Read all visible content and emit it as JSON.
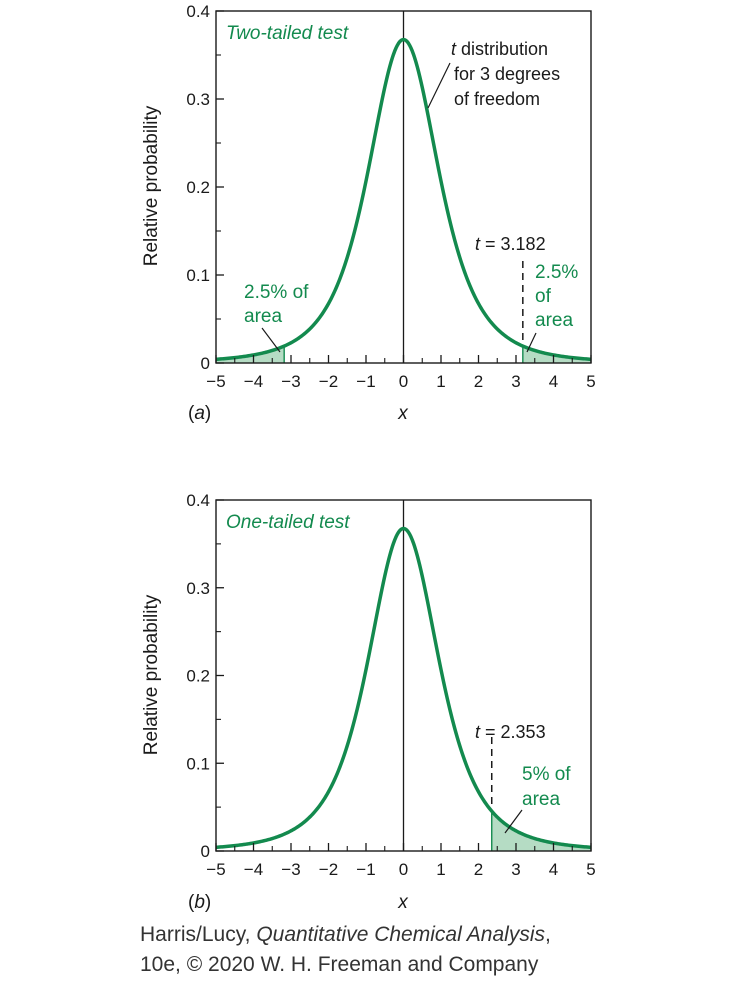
{
  "colors": {
    "curve": "#138a4e",
    "fill": "#b5dcc4",
    "axis": "#1a1a1a",
    "annotation_green": "#138a4e"
  },
  "chart_data": [
    {
      "type": "area",
      "panel_label": "(a)",
      "title": "Two-tailed test",
      "xlabel": "x",
      "ylabel": "Relative probability",
      "xlim": [
        -5,
        5
      ],
      "ylim": [
        0,
        0.4
      ],
      "xticks": [
        "−5",
        "−4",
        "−3",
        "−2",
        "−1",
        "0",
        "1",
        "2",
        "3",
        "4",
        "5"
      ],
      "yticks": [
        "0",
        "0.1",
        "0.2",
        "0.3",
        "0.4"
      ],
      "degrees_of_freedom": 3,
      "peak_value": 0.3676,
      "series": [
        {
          "name": "t distribution for 3 degrees of freedom",
          "function": "student_t",
          "df": 3
        }
      ],
      "shaded_regions": [
        [
          -5,
          -3.182
        ],
        [
          3.182,
          5
        ]
      ],
      "critical_line_x": 3.182,
      "annotations": {
        "curve_label": [
          "t distribution",
          "for 3 degrees",
          "of freedom"
        ],
        "critical_label": "t = 3.182",
        "left_area": [
          "2.5% of",
          "area"
        ],
        "right_area": [
          "2.5%",
          "of",
          "area"
        ]
      }
    },
    {
      "type": "area",
      "panel_label": "(b)",
      "title": "One-tailed test",
      "xlabel": "x",
      "ylabel": "Relative probability",
      "xlim": [
        -5,
        5
      ],
      "ylim": [
        0,
        0.4
      ],
      "xticks": [
        "−5",
        "−4",
        "−3",
        "−2",
        "−1",
        "0",
        "1",
        "2",
        "3",
        "4",
        "5"
      ],
      "yticks": [
        "0",
        "0.1",
        "0.2",
        "0.3",
        "0.4"
      ],
      "degrees_of_freedom": 3,
      "peak_value": 0.3676,
      "series": [
        {
          "function": "student_t",
          "df": 3
        }
      ],
      "shaded_regions": [
        [
          2.353,
          5
        ]
      ],
      "critical_line_x": 2.353,
      "annotations": {
        "critical_label": "t = 2.353",
        "right_area": [
          "5% of",
          "area"
        ]
      }
    }
  ],
  "caption": {
    "line1_prefix": "Harris/Lucy, ",
    "line1_italic": "Quantitative Chemical Analysis",
    "line1_suffix": ",",
    "line2": "10e, © 2020 W. H. Freeman and Company"
  }
}
